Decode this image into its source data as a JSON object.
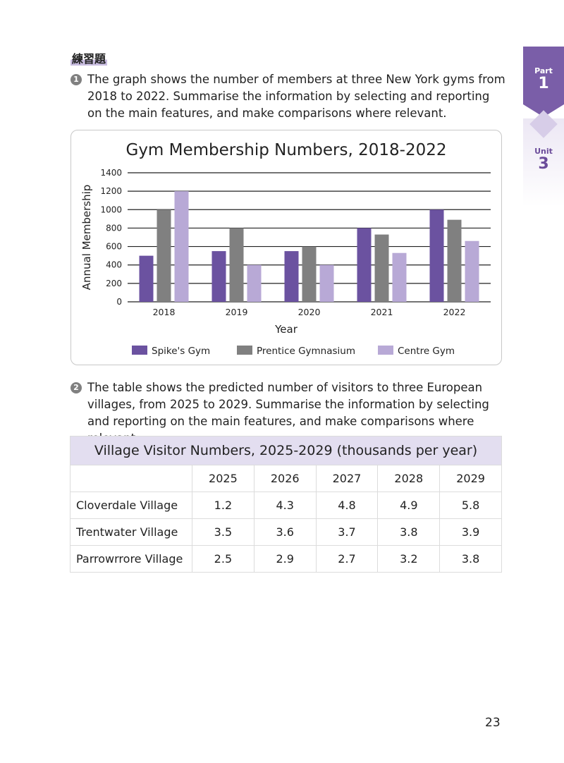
{
  "heading": "練習題",
  "side_tabs": {
    "part_label": "Part",
    "part_number": "1",
    "unit_label": "Unit",
    "unit_number": "3"
  },
  "question1": {
    "number": "1",
    "text": "The graph shows the number of members at three New York gyms from 2018 to 2022. Summarise the information by selecting and reporting on the main features, and make comparisons where relevant."
  },
  "question2": {
    "number": "2",
    "text": "The table shows the predicted number of visitors to three European villages, from 2025 to 2029. Summarise the information by selecting and reporting on the main features, and make comparisons where relevant."
  },
  "chart_data": {
    "type": "bar",
    "title": "Gym Membership Numbers, 2018-2022",
    "xlabel": "Year",
    "ylabel": "Annual Membership",
    "categories": [
      "2018",
      "2019",
      "2020",
      "2021",
      "2022"
    ],
    "ylim": [
      0,
      1400
    ],
    "yticks": [
      0,
      200,
      400,
      600,
      800,
      1000,
      1200,
      1400
    ],
    "grid": true,
    "legend_position": "bottom",
    "series": [
      {
        "name": "Spike's Gym",
        "color": "#6b52a0",
        "values": [
          500,
          550,
          550,
          800,
          1000
        ]
      },
      {
        "name": "Prentice Gymnasium",
        "color": "#808080",
        "values": [
          1000,
          800,
          600,
          730,
          890
        ]
      },
      {
        "name": "Centre Gym",
        "color": "#b8a9d6",
        "values": [
          1200,
          400,
          400,
          530,
          660
        ]
      }
    ]
  },
  "table": {
    "title": "Village Visitor Numbers, 2025-2029 (thousands per year)",
    "columns": [
      "2025",
      "2026",
      "2027",
      "2028",
      "2029"
    ],
    "rows": [
      {
        "label": "Cloverdale Village",
        "values": [
          "1.2",
          "4.3",
          "4.8",
          "4.9",
          "5.8"
        ]
      },
      {
        "label": "Trentwater Village",
        "values": [
          "3.5",
          "3.6",
          "3.7",
          "3.8",
          "3.9"
        ]
      },
      {
        "label": "Parrowrrore Village",
        "values": [
          "2.5",
          "2.9",
          "2.7",
          "3.2",
          "3.8"
        ]
      }
    ]
  },
  "page_number": "23"
}
